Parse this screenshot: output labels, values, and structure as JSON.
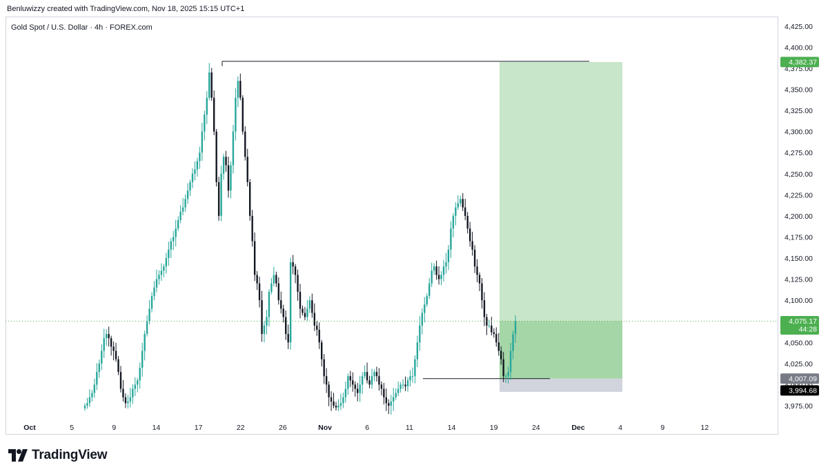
{
  "credit": "Benluwizzy created with TradingView.com, Nov 18, 2025 15:15 UTC+1",
  "brand": "TradingView",
  "colors": {
    "up": "#26a69a",
    "down": "#131722",
    "target_zone": "#c8e6c9",
    "profit_zone": "#a5d6a7",
    "stop_zone": "#d1d4dc",
    "target_badge": "#4caf50",
    "current_badge": "#4caf50",
    "stop_badge": "#787b86",
    "low_badge": "#000000"
  },
  "chart_data": {
    "type": "candlestick",
    "title": "Gold Spot / U.S. Dollar · 4h · FOREX.com",
    "x_ticks": [
      "Oct",
      "5",
      "9",
      "14",
      "17",
      "22",
      "26",
      "Nov",
      "6",
      "11",
      "14",
      "19",
      "24",
      "Dec",
      "4",
      "9",
      "12"
    ],
    "y_ticks": [
      "4,425.00",
      "4,400.00",
      "4,375.00",
      "4,350.00",
      "4,325.00",
      "4,300.00",
      "4,275.00",
      "4,250.00",
      "4,225.00",
      "4,200.00",
      "4,175.00",
      "4,150.00",
      "4,125.00",
      "4,100.00",
      "4,075.00",
      "4,050.00",
      "4,025.00",
      "4,000.00",
      "3,975.00"
    ],
    "ylim": [
      3966,
      4433
    ],
    "price_path": [
      [
        3975,
        3978,
        3985,
        3990,
        4000,
        4015,
        4025,
        4040,
        4055,
        4060,
        4055,
        4045
      ],
      [
        4040,
        4030,
        4015,
        3995,
        3985,
        3978,
        3980,
        3985,
        3995,
        4000
      ],
      [
        4005,
        4020,
        4040,
        4060,
        4075,
        4090,
        4105,
        4115,
        4125,
        4130,
        4135,
        4140,
        4150,
        4160,
        4170,
        4175,
        4185,
        4195,
        4205,
        4210,
        4220,
        4230,
        4240,
        4250,
        4255,
        4265,
        4275,
        4300,
        4320
      ],
      [
        4340,
        4370,
        4340,
        4300,
        4240,
        4200,
        4250,
        4270,
        4260,
        4230,
        4260,
        4300,
        4340,
        4360,
        4340,
        4300,
        4270
      ],
      [
        4240,
        4200,
        4170,
        4130,
        4120,
        4100,
        4060,
        4070,
        4080,
        4110,
        4120,
        4130,
        4120,
        4100,
        4090,
        4080,
        4060,
        4050
      ],
      [
        4145,
        4140,
        4130,
        4110,
        4090,
        4085,
        4080,
        4090,
        4100,
        4085,
        4070,
        4065,
        4050
      ],
      [
        4030,
        4010,
        4000,
        3985,
        3980,
        3975,
        3973,
        3975,
        3978
      ],
      [
        3985,
        3995,
        4010,
        4005,
        4000,
        3995,
        3990,
        4000,
        4010,
        4015,
        4005,
        4000,
        4010,
        4015,
        4010,
        4000,
        3995,
        3985,
        3978
      ],
      [
        3975,
        3980,
        3985,
        3990,
        3995,
        4000,
        4000,
        3998,
        4005,
        4010,
        4010
      ],
      [
        4030,
        4050,
        4070,
        4085,
        4095,
        4105,
        4120,
        4135,
        4140,
        4130,
        4125,
        4130,
        4140,
        4145,
        4160,
        4185
      ],
      [
        4200,
        4210,
        4215,
        4220,
        4210,
        4200,
        4185,
        4170,
        4160,
        4140,
        4130
      ],
      [
        4120,
        4100,
        4080,
        4070,
        4070,
        4062,
        4060,
        4050,
        4040,
        4030,
        4010,
        4010,
        4015,
        4040,
        4060,
        4075
      ]
    ],
    "position": {
      "entry": 4007.09,
      "target": 4382.37,
      "stop": 3994.68,
      "current": 4075.17,
      "countdown": "44:28"
    },
    "price_labels": {
      "target": "4,382.37",
      "current": "4,075.17",
      "entry": "4,007.09",
      "stop": "3,994.68"
    },
    "grid": false
  }
}
